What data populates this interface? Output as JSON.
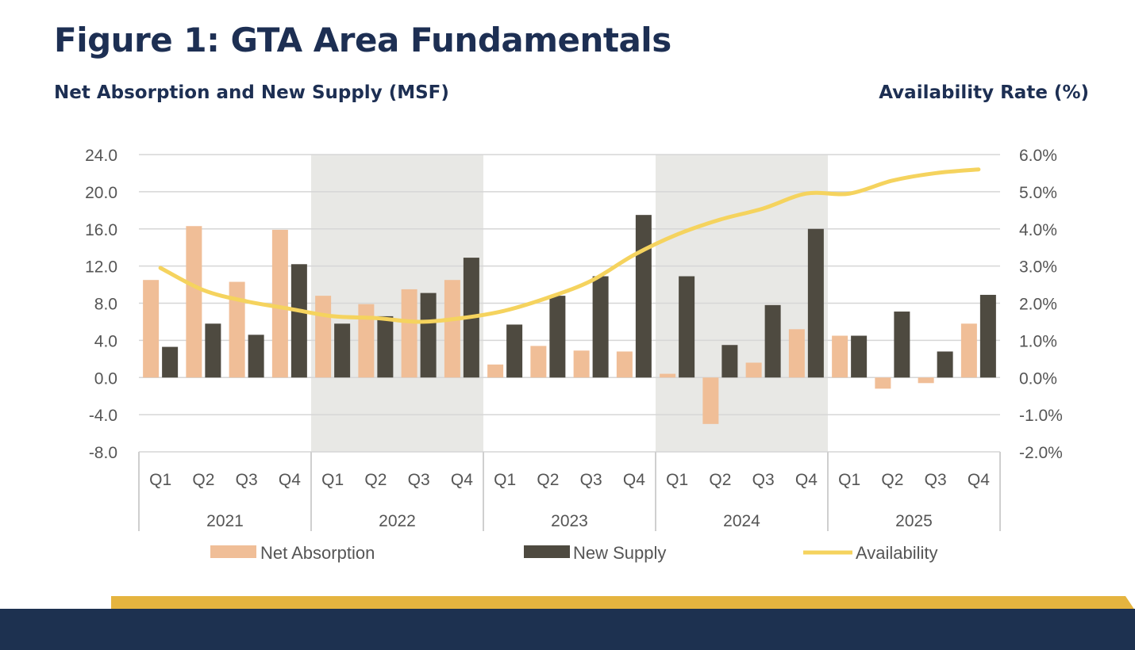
{
  "header": {
    "title": "Figure 1: GTA Area Fundamentals",
    "left_axis_title": "Net Absorption and New Supply (MSF)",
    "right_axis_title": "Availability Rate (%)"
  },
  "colors": {
    "title": "#1d2f53",
    "net_absorption": "#f0be97",
    "new_supply": "#4e4a40",
    "availability": "#f5d35e",
    "shade": "#e8e8e5",
    "gold_band": "#e5b43f",
    "navy_band": "#1d3150"
  },
  "chart_data": {
    "type": "bar",
    "title": "Figure 1: GTA Area Fundamentals",
    "categories": [
      "Q1",
      "Q2",
      "Q3",
      "Q4",
      "Q1",
      "Q2",
      "Q3",
      "Q4",
      "Q1",
      "Q2",
      "Q3",
      "Q4",
      "Q1",
      "Q2",
      "Q3",
      "Q4",
      "Q1",
      "Q2",
      "Q3",
      "Q4"
    ],
    "years": [
      "2021",
      "2022",
      "2023",
      "2024",
      "2025"
    ],
    "shaded_years": [
      "2022",
      "2024"
    ],
    "ylabel": "Net Absorption and New Supply (MSF)",
    "y2label": "Availability Rate (%)",
    "ylim": [
      -8,
      24
    ],
    "y2lim": [
      -2,
      6
    ],
    "yticks": [
      "24.0",
      "20.0",
      "16.0",
      "12.0",
      "8.0",
      "4.0",
      "0.0",
      "-4.0",
      "-8.0"
    ],
    "y2ticks": [
      "6.0%",
      "5.0%",
      "4.0%",
      "3.0%",
      "2.0%",
      "1.0%",
      "0.0%",
      "-1.0%",
      "-2.0%"
    ],
    "series": [
      {
        "name": "Net Absorption",
        "type": "bar",
        "values": [
          10.5,
          16.3,
          10.3,
          15.9,
          8.8,
          7.9,
          9.5,
          10.5,
          1.4,
          3.4,
          2.9,
          2.8,
          0.4,
          -5.0,
          1.6,
          5.2,
          4.5,
          -1.2,
          -0.6,
          5.8
        ]
      },
      {
        "name": "New Supply",
        "type": "bar",
        "values": [
          3.3,
          5.8,
          4.6,
          12.2,
          5.8,
          6.6,
          9.1,
          12.9,
          5.7,
          8.8,
          10.9,
          17.5,
          10.9,
          3.5,
          7.8,
          16.0,
          4.5,
          7.1,
          2.8,
          8.9
        ]
      },
      {
        "name": "Availability",
        "type": "line",
        "axis": "right",
        "values": [
          2.95,
          2.35,
          2.05,
          1.85,
          1.65,
          1.6,
          1.5,
          1.6,
          1.8,
          2.15,
          2.6,
          3.3,
          3.85,
          4.25,
          4.55,
          4.95,
          4.95,
          5.3,
          5.5,
          5.6
        ]
      }
    ],
    "legend": [
      "Net Absorption",
      "New Supply",
      "Availability"
    ],
    "legend_position": "bottom",
    "grid": true
  }
}
